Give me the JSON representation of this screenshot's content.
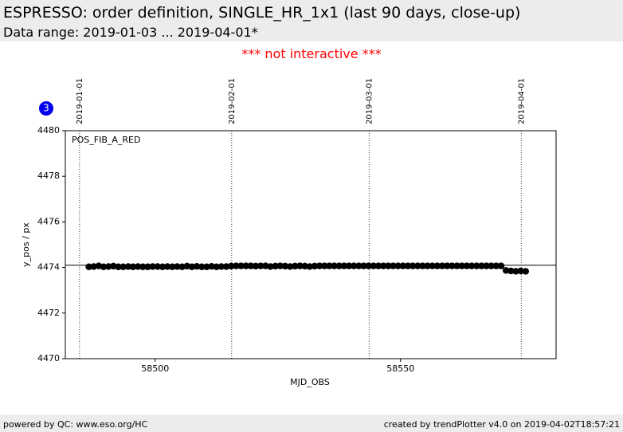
{
  "header": {
    "title": "ESPRESSO: order definition, SINGLE_HR_1x1 (last 90 days, close-up)",
    "subtitle": "Data range: 2019-01-03 ... 2019-04-01*"
  },
  "notice": "*** not interactive ***",
  "badge": "3",
  "footer": {
    "left": "powered by QC: www.eso.org/HC",
    "right": "created by trendPlotter v4.0 on 2019-04-02T18:57:21"
  },
  "chart_data": {
    "type": "scatter",
    "annotation": "POS_FIB_A_RED",
    "y_label": "y_pos / px",
    "x_label": "MJD_OBS",
    "xlim": [
      58481.7,
      58581.7
    ],
    "xticks": [
      58500,
      58550
    ],
    "ylim": [
      4470,
      4480
    ],
    "yticks": [
      4470,
      4472,
      4474,
      4476,
      4478,
      4480
    ],
    "reference_line": 4474.1,
    "date_markers": [
      {
        "label": "2019-01-01",
        "x": 58484.6
      },
      {
        "label": "2019-02-01",
        "x": 58515.6
      },
      {
        "label": "2019-03-01",
        "x": 58543.6
      },
      {
        "label": "2019-04-01",
        "x": 58574.6
      }
    ],
    "series": [
      {
        "color": "#000000",
        "x": [
          58486.5,
          58487.5,
          58488.5,
          58489.5,
          58490.5,
          58491.5,
          58492.5,
          58493.5,
          58494.5,
          58495.5,
          58496.5,
          58497.5,
          58498.5,
          58499.5,
          58500.5,
          58501.5,
          58502.5,
          58503.5,
          58504.5,
          58505.5,
          58506.5,
          58507.5,
          58508.5,
          58509.5,
          58510.5,
          58511.5,
          58512.5,
          58513.5,
          58514.5,
          58515.5,
          58516.5,
          58517.5,
          58518.5,
          58519.5,
          58520.5,
          58521.5,
          58522.5,
          58523.5,
          58524.5,
          58525.5,
          58526.5,
          58527.5,
          58528.5,
          58529.5,
          58530.5,
          58531.5,
          58532.5,
          58533.5,
          58534.5,
          58535.5,
          58536.5,
          58537.5,
          58538.5,
          58539.5,
          58540.5,
          58541.5,
          58542.5,
          58543.5,
          58544.5,
          58545.5,
          58546.5,
          58547.5,
          58548.5,
          58549.5,
          58550.5,
          58551.5,
          58552.5,
          58553.5,
          58554.5,
          58555.5,
          58556.5,
          58557.5,
          58558.5,
          58559.5,
          58560.5,
          58561.5,
          58562.5,
          58563.5,
          58564.5,
          58565.5,
          58566.5,
          58567.5,
          58568.5,
          58569.5,
          58570.5,
          58571.5,
          58572.5,
          58573.5,
          58574.5,
          58575.5
        ],
        "values": [
          4474.03,
          4474.04,
          4474.07,
          4474.03,
          4474.04,
          4474.06,
          4474.03,
          4474.03,
          4474.04,
          4474.03,
          4474.04,
          4474.03,
          4474.03,
          4474.04,
          4474.04,
          4474.03,
          4474.04,
          4474.03,
          4474.04,
          4474.03,
          4474.06,
          4474.03,
          4474.05,
          4474.03,
          4474.03,
          4474.05,
          4474.03,
          4474.04,
          4474.04,
          4474.06,
          4474.07,
          4474.07,
          4474.07,
          4474.07,
          4474.06,
          4474.07,
          4474.07,
          4474.04,
          4474.06,
          4474.07,
          4474.06,
          4474.04,
          4474.06,
          4474.07,
          4474.06,
          4474.04,
          4474.06,
          4474.07,
          4474.07,
          4474.07,
          4474.07,
          4474.07,
          4474.07,
          4474.07,
          4474.07,
          4474.07,
          4474.07,
          4474.07,
          4474.07,
          4474.07,
          4474.07,
          4474.07,
          4474.07,
          4474.07,
          4474.07,
          4474.07,
          4474.07,
          4474.07,
          4474.07,
          4474.07,
          4474.07,
          4474.07,
          4474.07,
          4474.07,
          4474.07,
          4474.07,
          4474.07,
          4474.07,
          4474.07,
          4474.07,
          4474.07,
          4474.07,
          4474.07,
          4474.07,
          4474.07,
          4473.87,
          4473.85,
          4473.83,
          4473.85,
          4473.83
        ]
      }
    ]
  }
}
